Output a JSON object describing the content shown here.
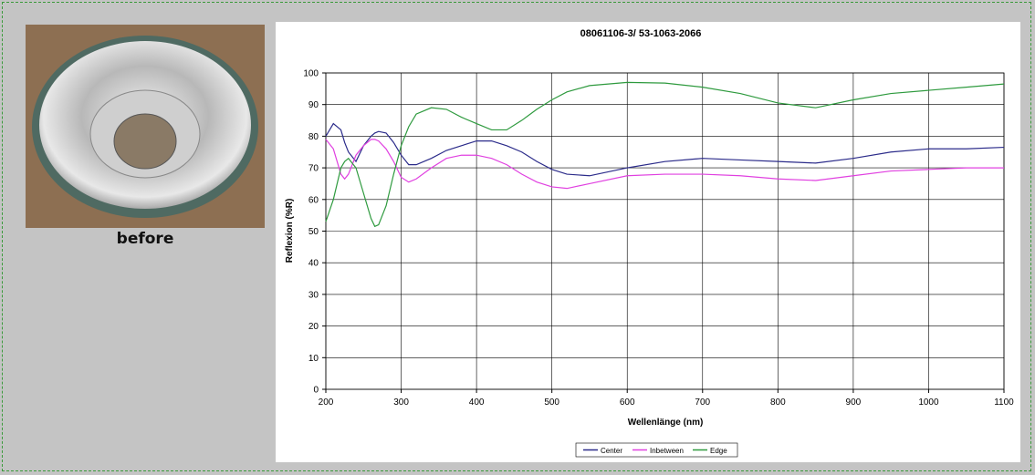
{
  "image_caption": "before",
  "chart_data": {
    "type": "line",
    "title": "08061106-3/ 53-1063-2066",
    "x_label": "Wellenlänge (nm)",
    "y_label": "Reflexion (%R)",
    "x": [
      200,
      210,
      220,
      225,
      230,
      240,
      250,
      260,
      265,
      270,
      280,
      290,
      300,
      310,
      320,
      340,
      360,
      380,
      400,
      420,
      440,
      460,
      480,
      500,
      520,
      550,
      600,
      650,
      700,
      750,
      800,
      850,
      900,
      950,
      1000,
      1050,
      1100
    ],
    "series": [
      {
        "name": "Center",
        "color": "#2b2b8a",
        "values": [
          80,
          84,
          82,
          78,
          75,
          72,
          77,
          80,
          81,
          81.5,
          81,
          78,
          74,
          71,
          71,
          73,
          75.5,
          77,
          78.5,
          78.5,
          77,
          75,
          72,
          69.5,
          68,
          67.5,
          70,
          72,
          73,
          72.5,
          72,
          71.5,
          73,
          75,
          76,
          76,
          76.5
        ]
      },
      {
        "name": "Inbetween",
        "color": "#e040e0",
        "values": [
          79,
          76,
          68,
          66.5,
          68,
          74,
          77,
          79,
          79,
          78.5,
          76,
          72,
          67,
          65.5,
          66.5,
          70,
          73,
          74,
          74,
          73,
          71,
          68,
          65.5,
          64,
          63.5,
          65,
          67.5,
          68,
          68,
          67.5,
          66.5,
          66,
          67.5,
          69,
          69.5,
          70,
          70
        ]
      },
      {
        "name": "Edge",
        "color": "#2e9a3e",
        "values": [
          53,
          60,
          70,
          72,
          73,
          70,
          62,
          54,
          51.5,
          52,
          58,
          68,
          77,
          83,
          87,
          89,
          88.5,
          86,
          84,
          82,
          82,
          85,
          88.5,
          91.5,
          94,
          96,
          97,
          96.8,
          95.5,
          93.5,
          90.5,
          89,
          91.5,
          93.5,
          94.5,
          95.5,
          96.5
        ]
      }
    ],
    "xlim": [
      200,
      1100
    ],
    "ylim": [
      0,
      100
    ],
    "xticks": [
      200,
      300,
      400,
      500,
      600,
      700,
      800,
      900,
      1000,
      1100
    ],
    "yticks": [
      0,
      10,
      20,
      30,
      40,
      50,
      60,
      70,
      80,
      90,
      100
    ],
    "grid": true,
    "legend": "bottom"
  }
}
